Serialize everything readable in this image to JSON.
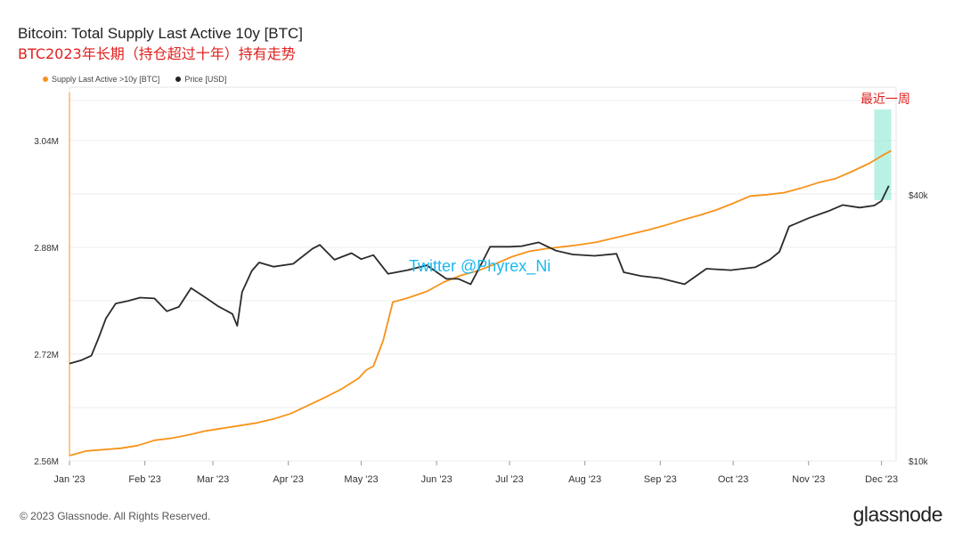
{
  "header": {
    "title": "Bitcoin: Total Supply Last Active 10y [BTC]",
    "subtitle": "BTC2023年长期（持仓超过十年）持有走势"
  },
  "legend": [
    {
      "name": "Supply Last Active >10y [BTC]",
      "color": "#f7931a"
    },
    {
      "name": "Price [USD]",
      "color": "#222222"
    }
  ],
  "annotations": {
    "recent_week": "最近一周",
    "watermark": "Twitter @Phyrex_Ni"
  },
  "footer": {
    "copyright": "© 2023 Glassnode. All Rights Reserved.",
    "logo": "glassnode"
  },
  "colors": {
    "supply": "#f7931a",
    "price": "#2b2b2b",
    "highlight": "#7fe8cf",
    "grid": "#ececec"
  },
  "chart_data": {
    "type": "line",
    "title": "Bitcoin: Total Supply Last Active 10y [BTC]",
    "x_tick_labels": [
      "Jan '23",
      "Feb '23",
      "Mar '23",
      "Apr '23",
      "May '23",
      "Jun '23",
      "Jul '23",
      "Aug '23",
      "Sep '23",
      "Oct '23",
      "Nov '23",
      "Dec '23"
    ],
    "y_left": {
      "ticks": [
        2560000,
        2720000,
        2880000,
        3040000
      ],
      "tick_labels": [
        "2.56M",
        "2.72M",
        "2.88M",
        "3.04M"
      ],
      "range": [
        2560000,
        3120000
      ]
    },
    "y_right": {
      "scale": "log",
      "ticks": [
        10000,
        40000
      ],
      "tick_labels": [
        "$10k",
        "$40k"
      ],
      "range": [
        10000,
        70000
      ]
    },
    "grid": true,
    "legend_position": "top-left",
    "highlight_range": [
      "2023-11-28",
      "2023-12-05"
    ],
    "series": [
      {
        "name": "Supply Last Active >10y [BTC]",
        "axis": "left",
        "points": [
          [
            "2023-01-01",
            2568000
          ],
          [
            "2023-01-08",
            2575000
          ],
          [
            "2023-01-15",
            2577000
          ],
          [
            "2023-01-22",
            2579000
          ],
          [
            "2023-01-29",
            2583000
          ],
          [
            "2023-02-05",
            2591000
          ],
          [
            "2023-02-12",
            2594000
          ],
          [
            "2023-02-19",
            2599000
          ],
          [
            "2023-02-26",
            2605000
          ],
          [
            "2023-03-05",
            2609000
          ],
          [
            "2023-03-12",
            2613000
          ],
          [
            "2023-03-19",
            2617000
          ],
          [
            "2023-03-26",
            2623000
          ],
          [
            "2023-04-02",
            2631000
          ],
          [
            "2023-04-09",
            2643000
          ],
          [
            "2023-04-16",
            2655000
          ],
          [
            "2023-04-23",
            2668000
          ],
          [
            "2023-04-30",
            2684000
          ],
          [
            "2023-05-03",
            2696000
          ],
          [
            "2023-05-06",
            2702000
          ],
          [
            "2023-05-10",
            2740000
          ],
          [
            "2023-05-14",
            2798000
          ],
          [
            "2023-05-20",
            2804000
          ],
          [
            "2023-05-28",
            2814000
          ],
          [
            "2023-06-04",
            2828000
          ],
          [
            "2023-06-11",
            2838000
          ],
          [
            "2023-06-18",
            2845000
          ],
          [
            "2023-06-25",
            2855000
          ],
          [
            "2023-07-02",
            2866000
          ],
          [
            "2023-07-09",
            2874000
          ],
          [
            "2023-07-16",
            2878000
          ],
          [
            "2023-07-23",
            2881000
          ],
          [
            "2023-07-30",
            2884000
          ],
          [
            "2023-08-06",
            2888000
          ],
          [
            "2023-08-13",
            2894000
          ],
          [
            "2023-08-20",
            2900000
          ],
          [
            "2023-08-27",
            2906000
          ],
          [
            "2023-09-03",
            2913000
          ],
          [
            "2023-09-10",
            2921000
          ],
          [
            "2023-09-17",
            2928000
          ],
          [
            "2023-09-24",
            2936000
          ],
          [
            "2023-10-01",
            2946000
          ],
          [
            "2023-10-08",
            2957000
          ],
          [
            "2023-10-15",
            2959000
          ],
          [
            "2023-10-22",
            2962000
          ],
          [
            "2023-10-29",
            2969000
          ],
          [
            "2023-11-05",
            2977000
          ],
          [
            "2023-11-12",
            2983000
          ],
          [
            "2023-11-19",
            2994000
          ],
          [
            "2023-11-26",
            3006000
          ],
          [
            "2023-12-01",
            3017000
          ],
          [
            "2023-12-05",
            3025000
          ]
        ]
      },
      {
        "name": "Price [USD]",
        "axis": "right",
        "points": [
          [
            "2023-01-01",
            16600
          ],
          [
            "2023-01-06",
            16900
          ],
          [
            "2023-01-10",
            17300
          ],
          [
            "2023-01-13",
            19000
          ],
          [
            "2023-01-16",
            21000
          ],
          [
            "2023-01-20",
            22700
          ],
          [
            "2023-01-25",
            23000
          ],
          [
            "2023-01-30",
            23400
          ],
          [
            "2023-02-05",
            23300
          ],
          [
            "2023-02-10",
            21800
          ],
          [
            "2023-02-15",
            22300
          ],
          [
            "2023-02-20",
            24600
          ],
          [
            "2023-02-26",
            23400
          ],
          [
            "2023-03-03",
            22400
          ],
          [
            "2023-03-09",
            21500
          ],
          [
            "2023-03-11",
            20200
          ],
          [
            "2023-03-13",
            24100
          ],
          [
            "2023-03-17",
            26900
          ],
          [
            "2023-03-20",
            28100
          ],
          [
            "2023-03-26",
            27500
          ],
          [
            "2023-04-03",
            27900
          ],
          [
            "2023-04-11",
            30200
          ],
          [
            "2023-04-14",
            30800
          ],
          [
            "2023-04-20",
            28500
          ],
          [
            "2023-04-27",
            29500
          ],
          [
            "2023-05-01",
            28600
          ],
          [
            "2023-05-06",
            29200
          ],
          [
            "2023-05-12",
            26500
          ],
          [
            "2023-05-20",
            27000
          ],
          [
            "2023-05-28",
            27700
          ],
          [
            "2023-06-05",
            25800
          ],
          [
            "2023-06-10",
            25800
          ],
          [
            "2023-06-15",
            25100
          ],
          [
            "2023-06-20",
            28300
          ],
          [
            "2023-06-23",
            30500
          ],
          [
            "2023-07-01",
            30500
          ],
          [
            "2023-07-06",
            30600
          ],
          [
            "2023-07-13",
            31200
          ],
          [
            "2023-07-20",
            29900
          ],
          [
            "2023-07-27",
            29300
          ],
          [
            "2023-08-05",
            29100
          ],
          [
            "2023-08-14",
            29400
          ],
          [
            "2023-08-17",
            26700
          ],
          [
            "2023-08-24",
            26200
          ],
          [
            "2023-09-01",
            25900
          ],
          [
            "2023-09-11",
            25100
          ],
          [
            "2023-09-20",
            27200
          ],
          [
            "2023-09-30",
            27000
          ],
          [
            "2023-10-10",
            27400
          ],
          [
            "2023-10-16",
            28500
          ],
          [
            "2023-10-20",
            29700
          ],
          [
            "2023-10-24",
            33900
          ],
          [
            "2023-11-01",
            35400
          ],
          [
            "2023-11-09",
            36700
          ],
          [
            "2023-11-15",
            37900
          ],
          [
            "2023-11-22",
            37400
          ],
          [
            "2023-11-28",
            37800
          ],
          [
            "2023-12-01",
            38700
          ],
          [
            "2023-12-04",
            41900
          ]
        ]
      }
    ]
  }
}
